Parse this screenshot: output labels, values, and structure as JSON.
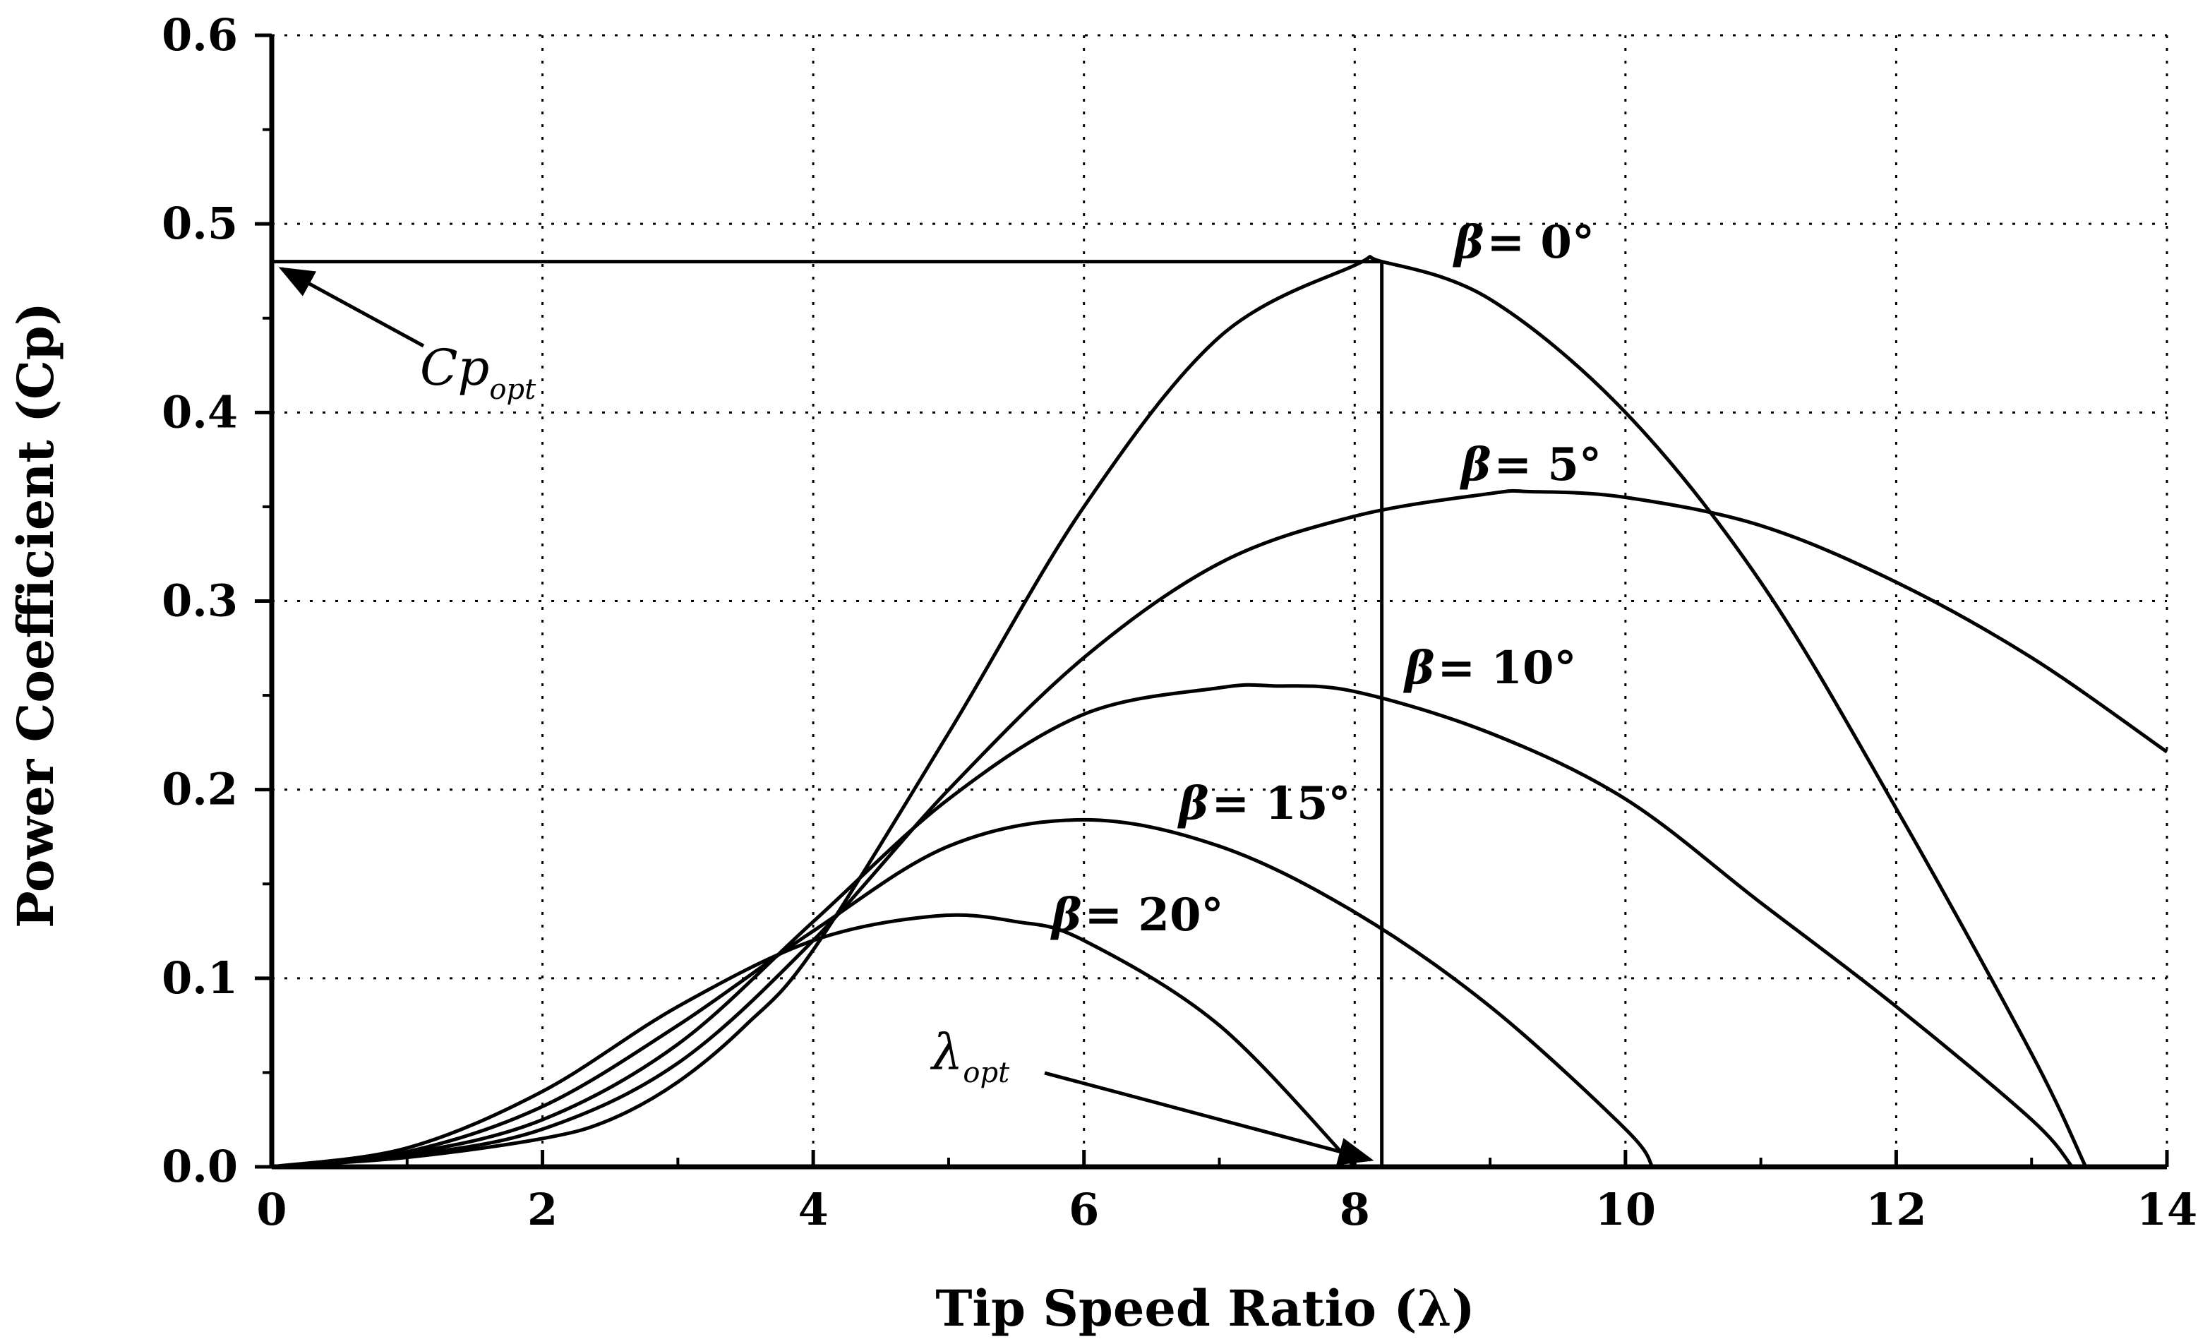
{
  "chart_data": {
    "type": "line",
    "title": "",
    "xlabel": "Tip Speed Ratio (λ)",
    "ylabel": "Power Coefficient (Cp)",
    "xlim": [
      0,
      14
    ],
    "ylim": [
      0,
      0.6
    ],
    "grid": true,
    "x_ticks": [
      "0",
      "2",
      "4",
      "6",
      "8",
      "10",
      "12",
      "14"
    ],
    "y_ticks": [
      "0.0",
      "0.1",
      "0.2",
      "0.3",
      "0.4",
      "0.5",
      "0.6"
    ],
    "series": [
      {
        "name": "β = 0°",
        "label_pre": "β",
        "label_post": "= 0°",
        "x": [
          0,
          1,
          2,
          2.5,
          3,
          3.5,
          4,
          5,
          6,
          7,
          8,
          8.2,
          9,
          10,
          11,
          12,
          13,
          13.4
        ],
        "y": [
          0,
          0.005,
          0.015,
          0.025,
          0.045,
          0.075,
          0.115,
          0.23,
          0.35,
          0.44,
          0.478,
          0.48,
          0.46,
          0.4,
          0.31,
          0.19,
          0.06,
          0
        ]
      },
      {
        "name": "β = 5°",
        "label_pre": "β",
        "label_post": "= 5°",
        "x": [
          0,
          1,
          2,
          3,
          4,
          5,
          6,
          7,
          8,
          9,
          9.3,
          10,
          11,
          12,
          13,
          14
        ],
        "y": [
          0,
          0.006,
          0.02,
          0.055,
          0.12,
          0.2,
          0.27,
          0.32,
          0.345,
          0.357,
          0.358,
          0.355,
          0.34,
          0.31,
          0.27,
          0.22
        ]
      },
      {
        "name": "β = 10°",
        "label_pre": "β",
        "label_post": "= 10°",
        "x": [
          0,
          1,
          2,
          3,
          4,
          5,
          6,
          7,
          7.4,
          8,
          9,
          10,
          11,
          12,
          13,
          13.3
        ],
        "y": [
          0,
          0.007,
          0.025,
          0.065,
          0.13,
          0.195,
          0.24,
          0.254,
          0.255,
          0.252,
          0.23,
          0.195,
          0.14,
          0.085,
          0.025,
          0
        ]
      },
      {
        "name": "β = 15°",
        "label_pre": "β",
        "label_post": "= 15°",
        "x": [
          0,
          1,
          2,
          3,
          4,
          5,
          6,
          7,
          8,
          9,
          10,
          10.2
        ],
        "y": [
          0,
          0.008,
          0.032,
          0.075,
          0.125,
          0.17,
          0.184,
          0.17,
          0.135,
          0.085,
          0.02,
          0
        ]
      },
      {
        "name": "β = 20°",
        "label_pre": "β",
        "label_post": "= 20°",
        "x": [
          0,
          1,
          2,
          3,
          4,
          4.9,
          5.5,
          6,
          7,
          8
        ],
        "y": [
          0,
          0.01,
          0.04,
          0.085,
          0.12,
          0.133,
          0.13,
          0.12,
          0.075,
          0
        ]
      }
    ],
    "annotations": [
      {
        "name": "cp-opt",
        "text": "Cp",
        "sub": "opt",
        "x": 0,
        "y": 0.48
      },
      {
        "name": "lambda-opt",
        "text": "λ",
        "sub": "opt",
        "x": 8.2,
        "y": 0
      }
    ]
  }
}
